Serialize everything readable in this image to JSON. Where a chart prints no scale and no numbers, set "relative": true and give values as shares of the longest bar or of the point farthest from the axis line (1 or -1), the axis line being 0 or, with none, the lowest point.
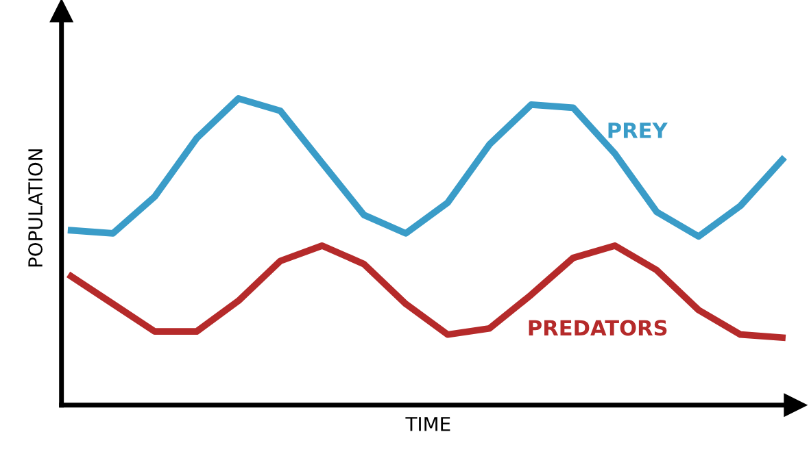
{
  "chart_data": {
    "type": "line",
    "relative": true,
    "xlabel": "TIME",
    "ylabel": "POPULATION",
    "categories": [
      null,
      null,
      null,
      null,
      null,
      null,
      null,
      null,
      null,
      null,
      null,
      null,
      null,
      null,
      null,
      null,
      null,
      null
    ],
    "series": [
      {
        "name": "PREY",
        "color": "#3a9cc8",
        "values": [
          0.57,
          0.56,
          0.68,
          0.87,
          1.0,
          0.96,
          0.79,
          0.62,
          0.56,
          0.66,
          0.85,
          0.98,
          0.97,
          0.82,
          0.63,
          0.55,
          0.65,
          0.8
        ]
      },
      {
        "name": "PREDATORS",
        "color": "#b52a2a",
        "values": [
          0.42,
          0.33,
          0.24,
          0.24,
          0.34,
          0.47,
          0.52,
          0.46,
          0.33,
          0.23,
          0.25,
          0.36,
          0.48,
          0.52,
          0.44,
          0.31,
          0.23,
          0.22
        ]
      }
    ],
    "legend": false,
    "marker": "none",
    "line_style": "solid"
  }
}
